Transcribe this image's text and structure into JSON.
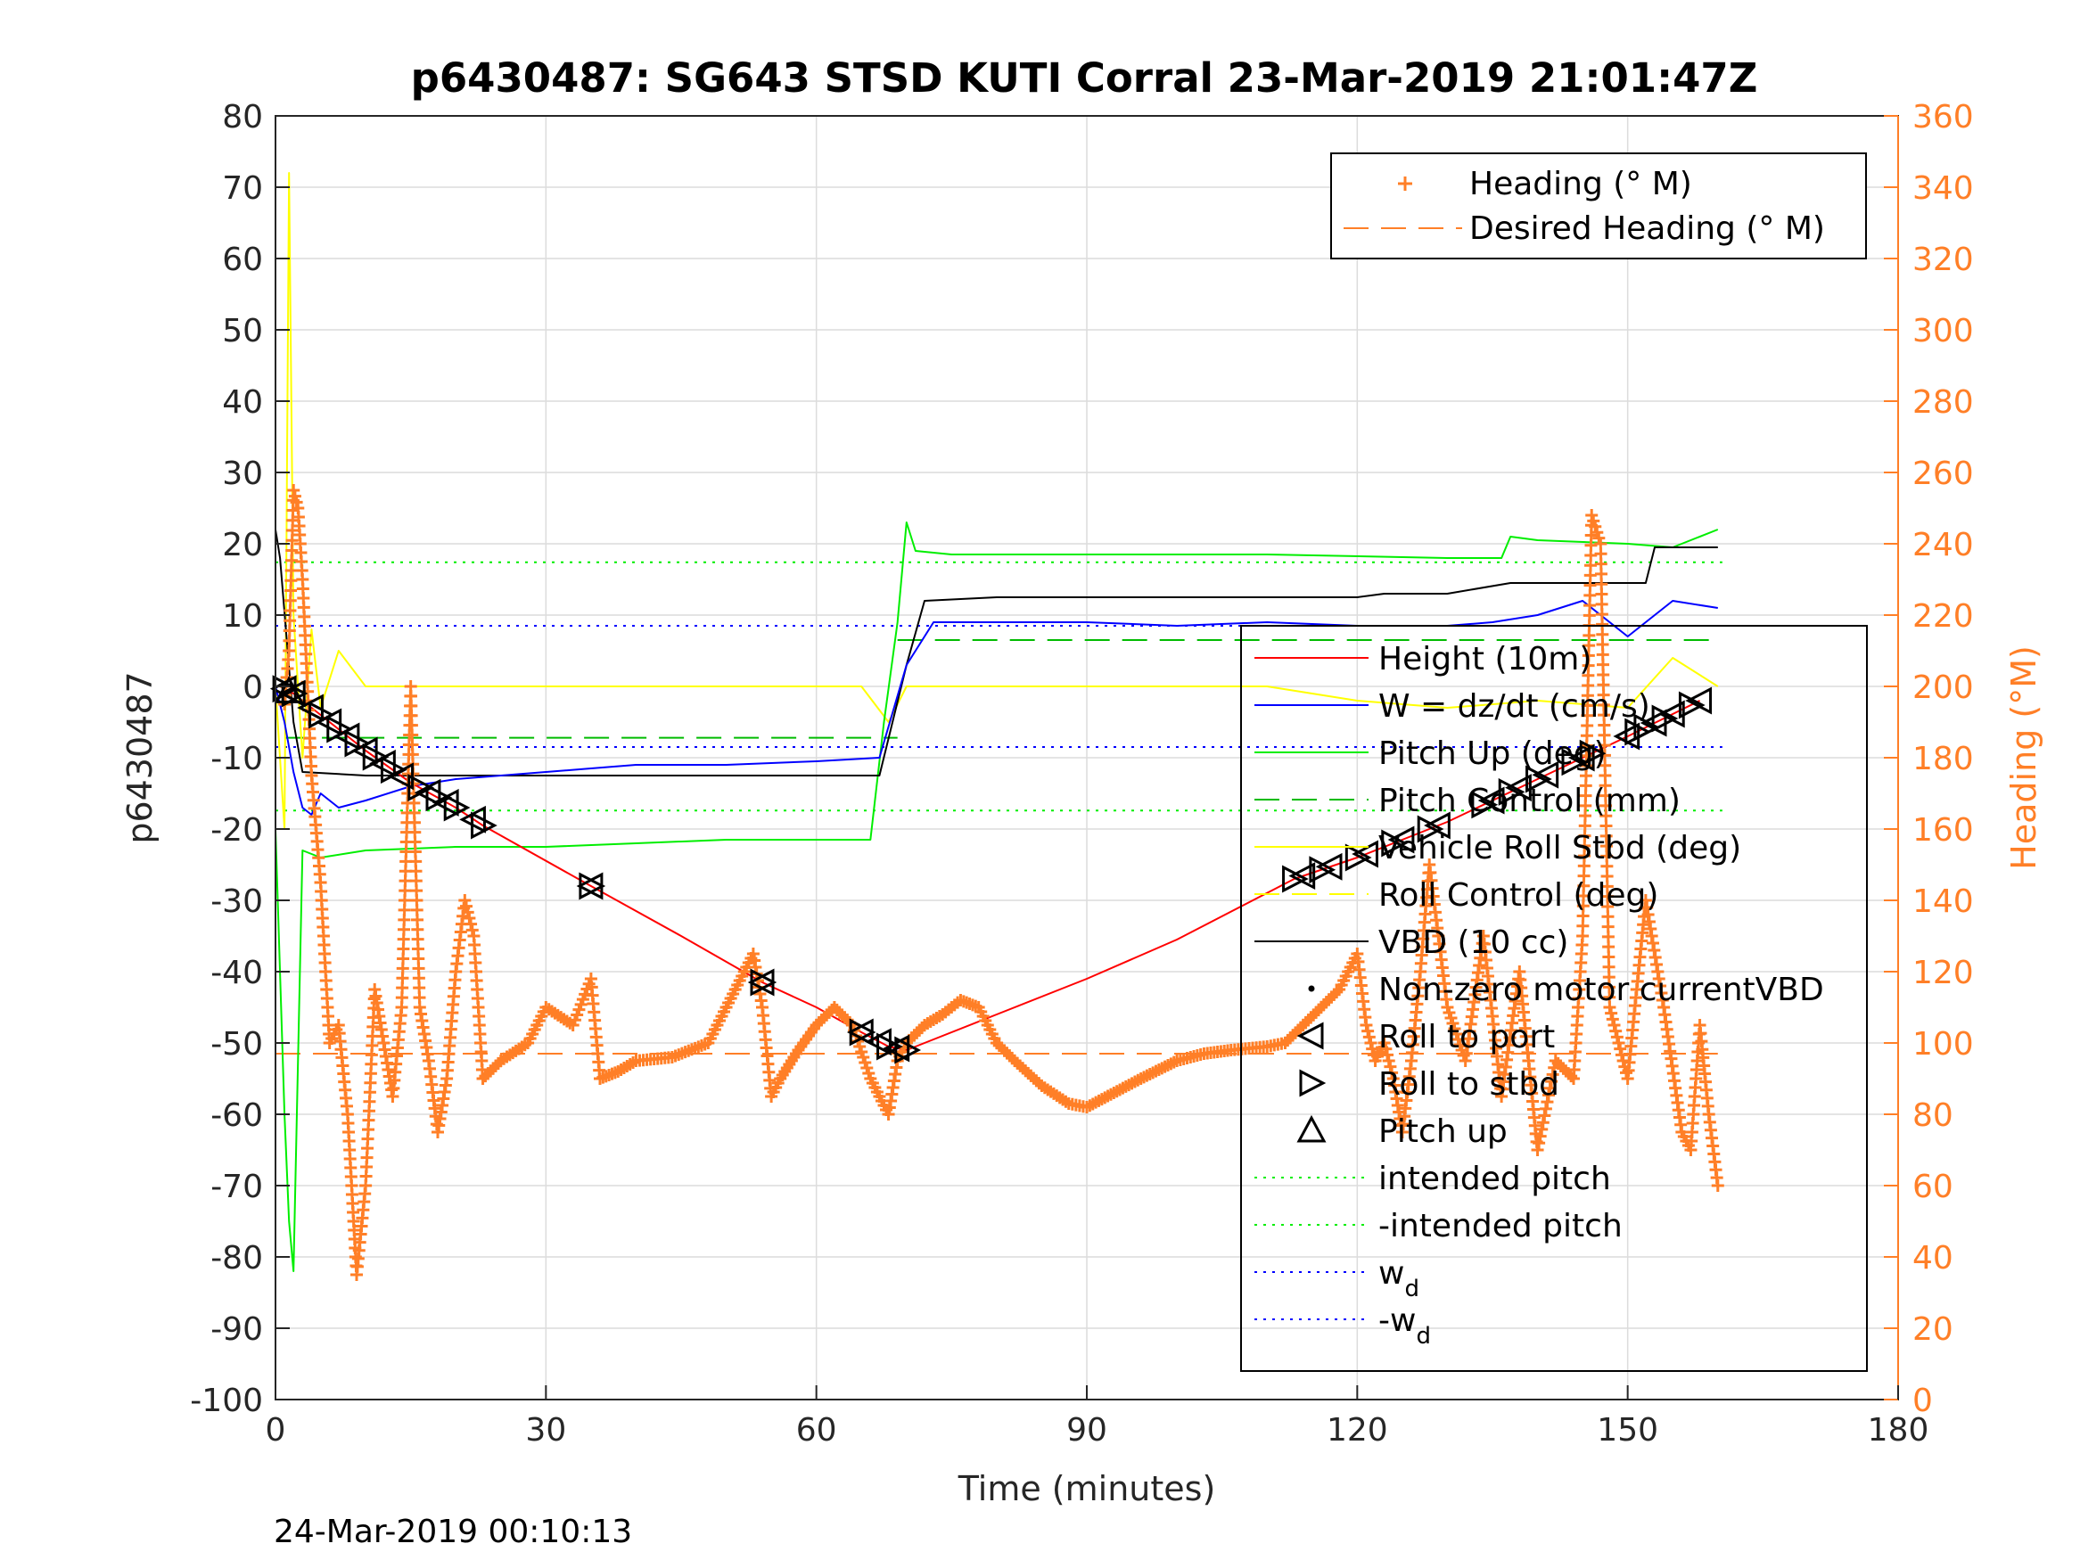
{
  "chart_data": {
    "type": "line",
    "title": "p6430487: SG643 STSD KUTI Corral 23-Mar-2019 21:01:47Z",
    "xlabel": "Time (minutes)",
    "ylabel": "p6430487",
    "y2label": "Heading (°M)",
    "xlim": [
      0,
      180
    ],
    "ylim": [
      -100,
      80
    ],
    "y2lim": [
      0,
      360
    ],
    "xticks": [
      0,
      30,
      60,
      90,
      120,
      150,
      180
    ],
    "yticks": [
      -100,
      -90,
      -80,
      -70,
      -60,
      -50,
      -40,
      -30,
      -20,
      -10,
      0,
      10,
      20,
      30,
      40,
      50,
      60,
      70,
      80
    ],
    "y2ticks": [
      0,
      20,
      40,
      60,
      80,
      100,
      120,
      140,
      160,
      180,
      200,
      220,
      240,
      260,
      280,
      300,
      320,
      340,
      360
    ],
    "grid": true,
    "timestamp": "24-Mar-2019 00:10:13",
    "legend_right": {
      "placement": "top-right",
      "entries": [
        "Heading (° M)",
        "Desired Heading (° M)"
      ]
    },
    "legend_left": {
      "placement": "bottom-right",
      "entries": [
        "Height (10m)",
        "W = dz/dt (cm/s)",
        "Pitch Up (deg)",
        "Pitch Control (mm)",
        "Vehicle Roll Stbd (deg)",
        "Roll Control (deg)",
        "VBD (10 cc)",
        "Non-zero motor currentVBD",
        "Roll to port",
        "Roll to stbd",
        "Pitch up",
        "intended pitch",
        "-intended pitch",
        "w",
        "-w"
      ],
      "subscript": "d"
    },
    "colors": {
      "height": "#ff0000",
      "w": "#0000ff",
      "pitch": "#00ee00",
      "roll": "#ffff00",
      "vbd": "#000000",
      "heading": "#ff7f27"
    },
    "reference_lines": {
      "intended_pitch": 17.4,
      "neg_intended_pitch": -17.4,
      "w_d": 8.5,
      "neg_w_d": -8.5,
      "pitch_control_dive": -7.2,
      "pitch_control_climb": 6.5,
      "desired_heading": 97
    },
    "series": [
      {
        "name": "Height (10m)",
        "x": [
          0.5,
          2,
          5,
          10,
          15,
          20,
          23,
          35,
          45,
          54,
          60,
          65,
          68,
          70,
          72,
          80,
          90,
          100,
          113,
          120,
          130,
          140,
          150,
          158
        ],
        "y": [
          0,
          -1,
          -4,
          -9,
          -13.5,
          -17,
          -19.5,
          -28,
          -35,
          -41.5,
          -45,
          -48.5,
          -50.5,
          -51,
          -50,
          -46,
          -41,
          -35.5,
          -27,
          -24,
          -19,
          -13,
          -7,
          -2
        ]
      },
      {
        "name": "W = dz/dt (cm/s)",
        "x": [
          0,
          1,
          2,
          3,
          4,
          5,
          7,
          10,
          15,
          20,
          25,
          30,
          35,
          40,
          50,
          60,
          67,
          70,
          73,
          80,
          90,
          100,
          110,
          120,
          130,
          135,
          140,
          145,
          150,
          155,
          160
        ],
        "y": [
          0,
          -5,
          -12,
          -17,
          -18,
          -15,
          -17,
          -16,
          -14,
          -13,
          -12.5,
          -12,
          -11.5,
          -11,
          -11,
          -10.5,
          -10,
          3,
          9,
          9,
          9,
          8.5,
          9,
          8.5,
          8.5,
          9,
          10,
          12,
          7,
          12,
          11
        ]
      },
      {
        "name": "Pitch Up (deg)",
        "x": [
          0,
          1,
          1.5,
          2,
          3,
          5,
          10,
          20,
          30,
          40,
          50,
          60,
          66,
          67.5,
          69,
          70,
          71,
          75,
          90,
          110,
          130,
          136,
          137,
          140,
          150,
          155,
          160
        ],
        "y": [
          -20,
          -60,
          -75,
          -82,
          -23,
          -24,
          -23,
          -22.5,
          -22.5,
          -22,
          -21.5,
          -21.5,
          -21.5,
          -5,
          9,
          23,
          19,
          18.5,
          18.5,
          18.5,
          18,
          18,
          21,
          20.5,
          20,
          19.5,
          22
        ]
      },
      {
        "name": "Vehicle Roll Stbd (deg)",
        "x": [
          0,
          1,
          1.5,
          2,
          3,
          4,
          5,
          7,
          10,
          15,
          20,
          25,
          30,
          35,
          40,
          50,
          60,
          65,
          68,
          70,
          80,
          90,
          100,
          110,
          120,
          130,
          140,
          150,
          155,
          160
        ],
        "y": [
          0,
          -20,
          72,
          10,
          -10,
          8,
          -3,
          5,
          0,
          0,
          0,
          0,
          0,
          0,
          0,
          0,
          0,
          0,
          -5,
          0,
          0,
          0,
          0,
          0,
          -2,
          -3,
          -2,
          -3,
          4,
          0
        ]
      },
      {
        "name": "VBD (10 cc)",
        "x": [
          0,
          0.5,
          2,
          3,
          10,
          20,
          30,
          40,
          50,
          60,
          67,
          70,
          72,
          80,
          90,
          100,
          110,
          120,
          123,
          130,
          137,
          140,
          150,
          152,
          153,
          160
        ],
        "y": [
          22,
          18,
          -5,
          -12,
          -12.5,
          -12.5,
          -12.5,
          -12.5,
          -12.5,
          -12.5,
          -12.5,
          3,
          12,
          12.5,
          12.5,
          12.5,
          12.5,
          12.5,
          13,
          13,
          14.5,
          14.5,
          14.5,
          14.5,
          19.5,
          19.5
        ]
      },
      {
        "name": "Heading (° M)",
        "axis": "right",
        "x": [
          1,
          1.5,
          2,
          2.5,
          3,
          4,
          5,
          6,
          7,
          8,
          9,
          10,
          11,
          12,
          13,
          14,
          15,
          16,
          17,
          18,
          19,
          20,
          21,
          22,
          23,
          25,
          28,
          30,
          33,
          35,
          36,
          38,
          40,
          44,
          48,
          50,
          52,
          53,
          54,
          55,
          56,
          58,
          60,
          62,
          64,
          66,
          68,
          69,
          70,
          72,
          74,
          76,
          78,
          80,
          82,
          85,
          88,
          90,
          93,
          96,
          100,
          103,
          106,
          110,
          112,
          114,
          116,
          118,
          120,
          121,
          122,
          123,
          124,
          125,
          126,
          127,
          128,
          129,
          130,
          132,
          134,
          136,
          138,
          140,
          142,
          144,
          145,
          146,
          147,
          148,
          150,
          152,
          154,
          156,
          157,
          158,
          159,
          160
        ],
        "y": [
          195,
          210,
          255,
          250,
          230,
          175,
          145,
          100,
          105,
          80,
          35,
          60,
          115,
          100,
          85,
          110,
          200,
          110,
          95,
          75,
          90,
          120,
          140,
          130,
          90,
          95,
          100,
          110,
          105,
          118,
          90,
          92,
          95,
          96,
          100,
          110,
          120,
          125,
          110,
          85,
          90,
          98,
          105,
          110,
          105,
          90,
          80,
          95,
          100,
          105,
          108,
          112,
          110,
          100,
          95,
          88,
          83,
          82,
          86,
          90,
          95,
          97,
          98,
          99,
          100,
          105,
          110,
          115,
          125,
          105,
          95,
          100,
          90,
          75,
          95,
          120,
          150,
          130,
          110,
          95,
          130,
          85,
          120,
          70,
          95,
          90,
          130,
          248,
          240,
          110,
          90,
          140,
          110,
          75,
          70,
          105,
          80,
          60
        ]
      }
    ],
    "markers": {
      "roll_to_port_x": [
        1,
        2,
        4,
        6,
        8,
        10,
        12,
        14,
        17,
        19,
        22,
        35,
        54,
        65,
        67,
        69,
        114,
        117,
        121,
        125,
        129,
        135,
        138,
        141,
        145,
        150,
        153,
        155,
        158
      ],
      "roll_to_stbd_x": [
        1,
        2,
        5,
        7,
        9,
        11,
        13,
        16,
        18,
        20,
        23,
        35,
        54,
        65,
        68,
        70,
        113,
        116,
        120,
        124,
        128,
        134,
        137,
        140,
        144,
        146,
        151,
        152,
        154,
        157
      ],
      "pitch_up_x": [
        1.5
      ]
    }
  }
}
